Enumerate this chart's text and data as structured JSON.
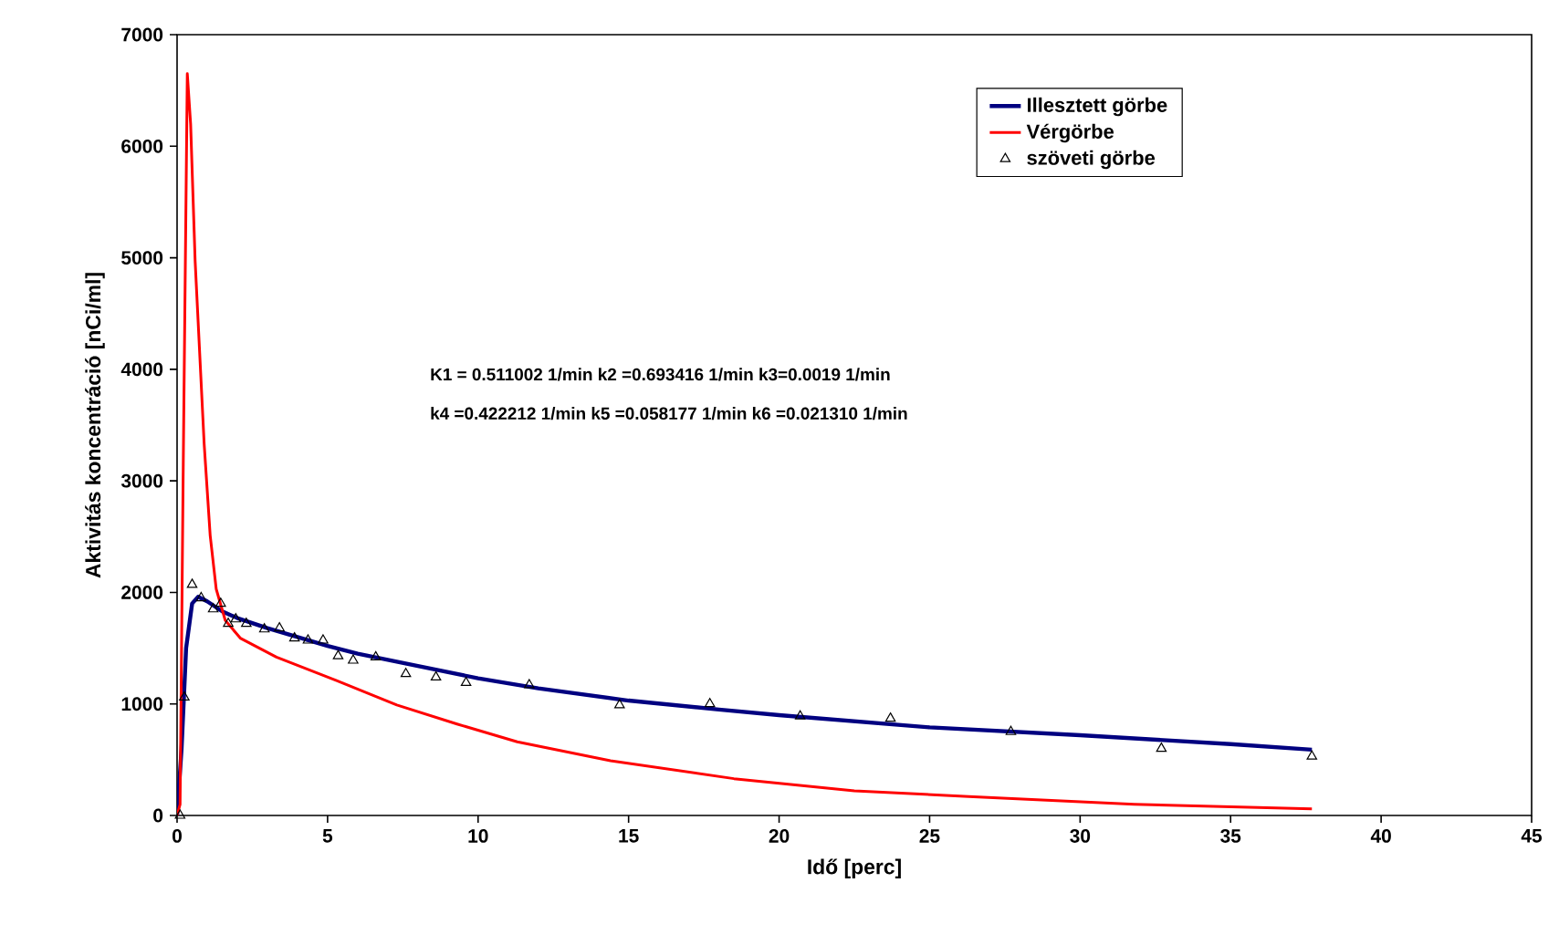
{
  "chart_data": {
    "type": "line",
    "xlabel": "Idő [perc]",
    "ylabel": "Aktivitás koncentráció [nCi/ml]",
    "xlim": [
      0,
      45
    ],
    "xticks": [
      0,
      5,
      10,
      15,
      20,
      25,
      30,
      35,
      40,
      45
    ],
    "ylim": [
      0,
      7000
    ],
    "yticks": [
      0,
      1000,
      2000,
      3000,
      4000,
      5000,
      6000,
      7000
    ],
    "legend": "top right",
    "annotations": [
      "K1 = 0.511002 1/min  k2 =0.693416 1/min  k3=0.0019  1/min",
      "k4 =0.422212 1/min  k5 =0.058177 1/min  k6 =0.021310 1/min"
    ],
    "series": [
      {
        "name": "Illesztett görbe",
        "color": "#000080",
        "x": [
          0,
          0.15,
          0.3,
          0.5,
          0.7,
          1,
          1.5,
          2,
          3,
          4,
          5,
          6,
          8,
          10,
          12,
          15,
          18,
          20,
          25,
          30,
          35,
          37.7
        ],
        "values": [
          0,
          600,
          1500,
          1900,
          1960,
          1920,
          1830,
          1770,
          1680,
          1600,
          1520,
          1450,
          1340,
          1230,
          1140,
          1030,
          950,
          900,
          790,
          720,
          640,
          590
        ]
      },
      {
        "name": "Vérgörbe",
        "color": "#ff0000",
        "x": [
          0,
          0.1,
          0.2,
          0.34,
          0.45,
          0.6,
          0.9,
          1.1,
          1.3,
          1.6,
          2.1,
          3.3,
          5.3,
          7.3,
          9.3,
          11.3,
          14.4,
          18.5,
          22.5,
          26.3,
          31.8,
          37.7
        ],
        "values": [
          0,
          100,
          3000,
          6650,
          6200,
          4970,
          3330,
          2510,
          2030,
          1750,
          1590,
          1420,
          1210,
          990,
          820,
          660,
          490,
          330,
          220,
          170,
          100,
          60
        ]
      },
      {
        "name": "szöveti görbe",
        "type": "scatter",
        "marker": "triangle",
        "color": "#000000",
        "x": [
          0.1,
          0.24,
          0.5,
          0.8,
          1.2,
          1.45,
          1.7,
          1.95,
          2.3,
          2.9,
          3.4,
          3.9,
          4.35,
          4.85,
          5.35,
          5.85,
          6.6,
          7.6,
          8.6,
          9.6,
          11.7,
          14.7,
          17.7,
          20.7,
          23.7,
          27.7,
          32.7,
          37.7
        ],
        "values": [
          0,
          1060,
          2070,
          1950,
          1850,
          1900,
          1720,
          1760,
          1720,
          1670,
          1680,
          1590,
          1570,
          1570,
          1430,
          1390,
          1420,
          1270,
          1240,
          1190,
          1170,
          990,
          1000,
          890,
          870,
          750,
          600,
          530
        ]
      }
    ]
  }
}
